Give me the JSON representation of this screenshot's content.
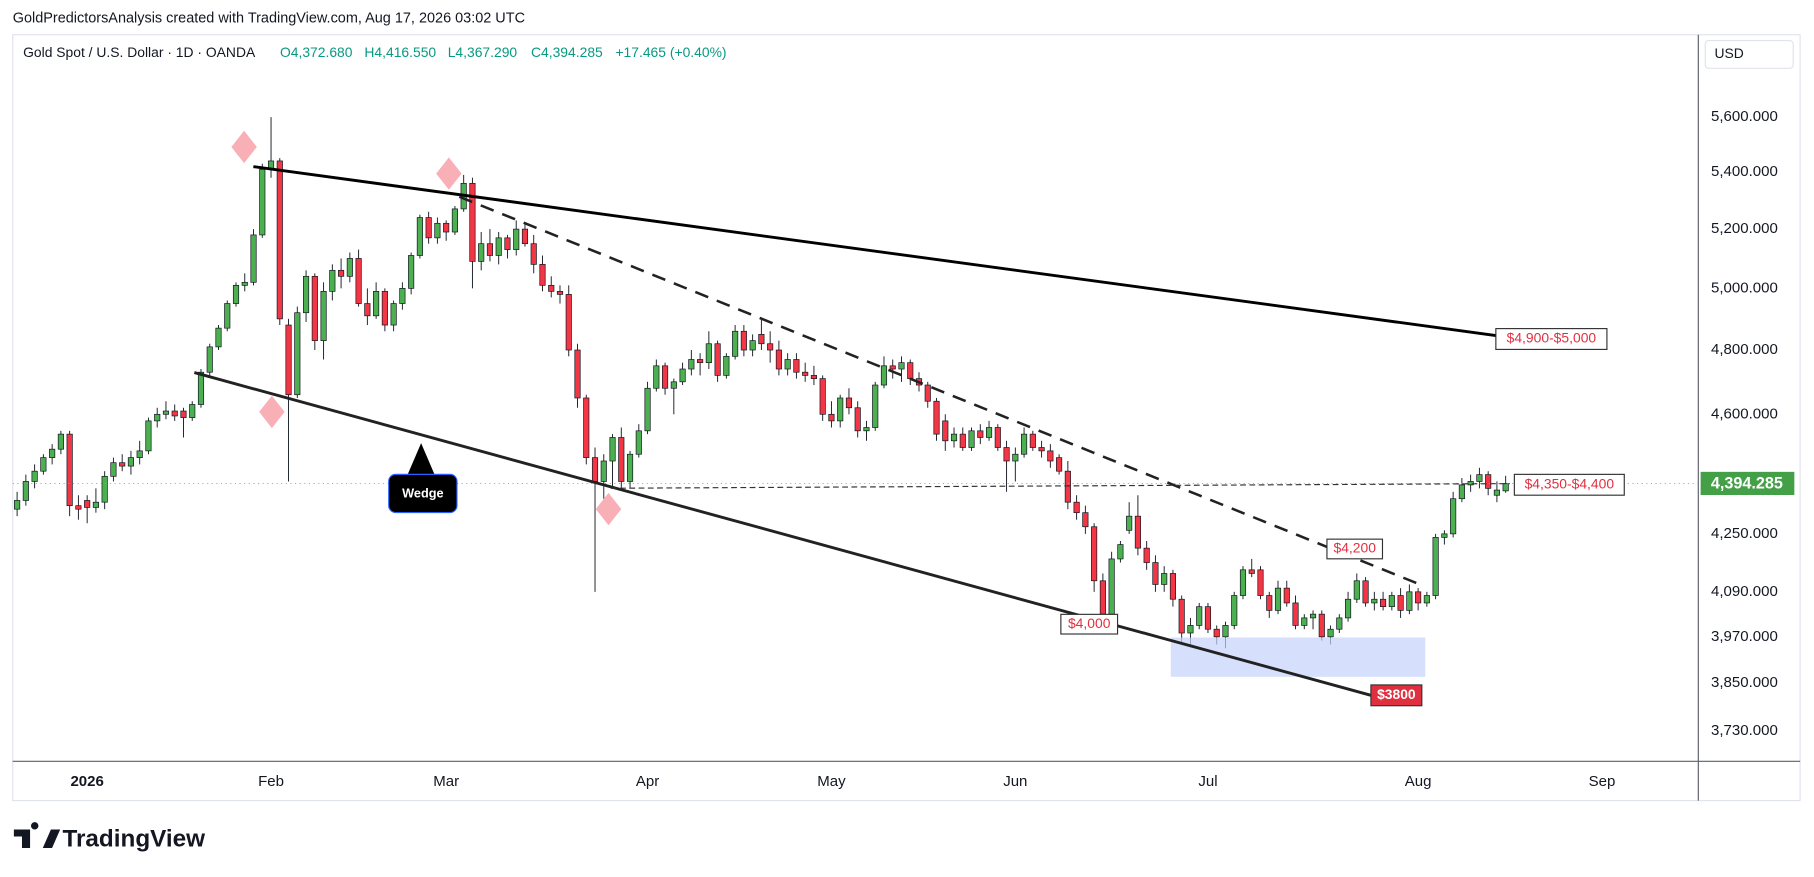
{
  "header": "GoldPredictorsAnalysis created with TradingView.com, Aug 17, 2026 03:02 UTC",
  "legend": {
    "symbol": "Gold Spot / U.S. Dollar · 1D · OANDA",
    "open": "O4,372.680",
    "high": "H4,416.550",
    "low": "L4,367.290",
    "close": "C4,394.285",
    "change": "+17.465 (+0.40%)"
  },
  "currency": "USD",
  "annotations": [
    "Wedge",
    "$4,900-$5,000",
    "$4,350-$4,400",
    "$4,200",
    "$4,000",
    "$3800"
  ],
  "footer_brand": "TradingView",
  "chart_data": {
    "type": "candlestick",
    "log": true,
    "grid": false,
    "up_color": "#4caf50",
    "down_color": "#f23645",
    "last_price_label": "4,394.285",
    "last_price_color": "#43a047",
    "xlim": [
      -0.5,
      192
    ],
    "xticks": [
      {
        "value": 8,
        "label": "2026"
      },
      {
        "value": 29,
        "label": "Feb"
      },
      {
        "value": 49,
        "label": "Mar"
      },
      {
        "value": 72,
        "label": "Apr"
      },
      {
        "value": 93,
        "label": "May"
      },
      {
        "value": 114,
        "label": "Jun"
      },
      {
        "value": 136,
        "label": "Jul"
      },
      {
        "value": 160,
        "label": "Aug"
      },
      {
        "value": 181,
        "label": "Sep"
      }
    ],
    "ylim": [
      3656,
      5914
    ],
    "yticks": [
      {
        "value": 5600,
        "label": "5,600.000"
      },
      {
        "value": 5400,
        "label": "5,400.000"
      },
      {
        "value": 5200,
        "label": "5,200.000"
      },
      {
        "value": 5000,
        "label": "5,000.000"
      },
      {
        "value": 4800,
        "label": "4,800.000"
      },
      {
        "value": 4600,
        "label": "4,600.000"
      },
      {
        "value": 4250,
        "label": "4,250.000"
      },
      {
        "value": 4090,
        "label": "4,090.000"
      },
      {
        "value": 3970,
        "label": "3,970.000"
      },
      {
        "value": 3850,
        "label": "3,850.000"
      },
      {
        "value": 3730,
        "label": "3,730.000"
      }
    ],
    "x": [
      0,
      1,
      2,
      3,
      4,
      5,
      6,
      7,
      8,
      9,
      10,
      11,
      12,
      13,
      14,
      15,
      16,
      17,
      18,
      19,
      20,
      21,
      22,
      23,
      24,
      25,
      26,
      27,
      28,
      29,
      30,
      31,
      32,
      33,
      34,
      35,
      36,
      37,
      38,
      39,
      40,
      41,
      42,
      43,
      44,
      45,
      46,
      47,
      48,
      49,
      50,
      51,
      52,
      53,
      54,
      55,
      56,
      57,
      58,
      59,
      60,
      61,
      62,
      63,
      64,
      65,
      66,
      67,
      68,
      69,
      70,
      71,
      72,
      73,
      74,
      75,
      76,
      77,
      78,
      79,
      80,
      81,
      82,
      83,
      84,
      85,
      86,
      87,
      88,
      89,
      90,
      91,
      92,
      93,
      94,
      95,
      96,
      97,
      98,
      99,
      100,
      101,
      102,
      103,
      104,
      105,
      106,
      107,
      108,
      109,
      110,
      111,
      112,
      113,
      114,
      115,
      116,
      117,
      118,
      119,
      120,
      121,
      122,
      123,
      124,
      125,
      126,
      127,
      128,
      129,
      130,
      131,
      132,
      133,
      134,
      135,
      136,
      137,
      138,
      139,
      140,
      141,
      142,
      143,
      144,
      145,
      146,
      147,
      148,
      149,
      150,
      151,
      152,
      153,
      154,
      155,
      156,
      157,
      158,
      159,
      160,
      161,
      162,
      163,
      164,
      165,
      166,
      167,
      168,
      169,
      170
    ],
    "open": [
      4320,
      4345,
      4400,
      4430,
      4470,
      4495,
      4540,
      4330,
      4345,
      4325,
      4340,
      4415,
      4455,
      4445,
      4470,
      4490,
      4580,
      4600,
      4610,
      4610,
      4590,
      4630,
      4730,
      4810,
      4870,
      4950,
      5010,
      5020,
      5180,
      5410,
      5440,
      4880,
      4660,
      4920,
      5040,
      4830,
      4990,
      5060,
      5040,
      5100,
      4950,
      4910,
      4990,
      4880,
      4950,
      5000,
      5110,
      5240,
      5170,
      5220,
      5190,
      5270,
      5360,
      5090,
      5150,
      5110,
      5170,
      5130,
      5200,
      5150,
      5080,
      5010,
      4990,
      4980,
      4800,
      4650,
      4470,
      4400,
      4460,
      4530,
      4400,
      4480,
      4550,
      4680,
      4750,
      4680,
      4700,
      4740,
      4770,
      4760,
      4820,
      4720,
      4780,
      4860,
      4800,
      4850,
      4820,
      4800,
      4740,
      4770,
      4730,
      4720,
      4710,
      4600,
      4580,
      4650,
      4620,
      4550,
      4560,
      4690,
      4750,
      4740,
      4760,
      4710,
      4690,
      4640,
      4580,
      4520,
      4540,
      4500,
      4550,
      4530,
      4560,
      4500,
      4460,
      4480,
      4540,
      4500,
      4490,
      4470,
      4430,
      4340,
      4310,
      4270,
      4120,
      4030,
      4180,
      4260,
      4300,
      4210,
      4170,
      4110,
      4140,
      4070,
      3980,
      4000,
      4050,
      3990,
      3970,
      4000,
      4080,
      4150,
      4150,
      4080,
      4040,
      4100,
      4060,
      4000,
      4020,
      4030,
      3970,
      3990,
      4020,
      4070,
      4120,
      4060,
      4070,
      4050,
      4080,
      4040,
      4090,
      4060,
      4080,
      4240,
      4250,
      4350,
      4390,
      4400,
      4420,
      4360,
      4372.68
    ],
    "high": [
      4370,
      4420,
      4450,
      4480,
      4510,
      4550,
      4550,
      4360,
      4360,
      4380,
      4430,
      4470,
      4480,
      4490,
      4520,
      4590,
      4620,
      4640,
      4630,
      4620,
      4640,
      4740,
      4820,
      4880,
      4960,
      5020,
      5050,
      5200,
      5430,
      5600,
      5450,
      4900,
      4940,
      5060,
      5050,
      5020,
      5080,
      5100,
      5120,
      5130,
      5000,
      5020,
      5000,
      4960,
      5020,
      5120,
      5250,
      5260,
      5240,
      5230,
      5280,
      5390,
      5380,
      5190,
      5200,
      5190,
      5180,
      5230,
      5220,
      5180,
      5110,
      5040,
      5010,
      5010,
      4820,
      4660,
      4500,
      4480,
      4540,
      4560,
      4490,
      4570,
      4700,
      4770,
      4760,
      4710,
      4760,
      4800,
      4790,
      4860,
      4830,
      4790,
      4880,
      4880,
      4850,
      4900,
      4860,
      4830,
      4790,
      4790,
      4760,
      4750,
      4720,
      4640,
      4660,
      4680,
      4640,
      4580,
      4700,
      4780,
      4770,
      4780,
      4770,
      4730,
      4700,
      4650,
      4600,
      4560,
      4560,
      4560,
      4570,
      4580,
      4570,
      4520,
      4500,
      4560,
      4550,
      4520,
      4510,
      4480,
      4460,
      4360,
      4330,
      4280,
      4140,
      4200,
      4230,
      4340,
      4360,
      4230,
      4190,
      4160,
      4150,
      4080,
      4020,
      4060,
      4060,
      4000,
      4010,
      4090,
      4160,
      4180,
      4160,
      4090,
      4120,
      4120,
      4080,
      4030,
      4040,
      4040,
      4000,
      4030,
      4090,
      4140,
      4130,
      4090,
      4090,
      4090,
      4100,
      4110,
      4100,
      4090,
      4250,
      4260,
      4370,
      4410,
      4420,
      4440,
      4430,
      4400,
      4416.55
    ],
    "low": [
      4300,
      4330,
      4380,
      4420,
      4450,
      4480,
      4300,
      4290,
      4280,
      4310,
      4320,
      4400,
      4430,
      4420,
      4450,
      4480,
      4560,
      4585,
      4580,
      4530,
      4580,
      4620,
      4720,
      4800,
      4860,
      4940,
      4990,
      5010,
      5170,
      5380,
      4880,
      4400,
      4650,
      4890,
      4800,
      4770,
      4960,
      5000,
      5020,
      4940,
      4880,
      4900,
      4860,
      4860,
      4930,
      4980,
      5100,
      5150,
      5150,
      5160,
      5180,
      5260,
      5000,
      5060,
      5090,
      5080,
      5100,
      5110,
      5140,
      5050,
      4990,
      4970,
      4950,
      4780,
      4620,
      4450,
      4090,
      4350,
      4380,
      4380,
      4380,
      4470,
      4540,
      4670,
      4660,
      4600,
      4690,
      4720,
      4720,
      4740,
      4700,
      4710,
      4770,
      4780,
      4780,
      4800,
      4760,
      4720,
      4720,
      4710,
      4700,
      4690,
      4580,
      4560,
      4560,
      4600,
      4530,
      4520,
      4550,
      4680,
      4710,
      4700,
      4690,
      4670,
      4620,
      4520,
      4490,
      4500,
      4490,
      4490,
      4510,
      4520,
      4490,
      4370,
      4400,
      4470,
      4490,
      4470,
      4440,
      4420,
      4320,
      4290,
      4250,
      4090,
      4000,
      4020,
      4170,
      4250,
      4190,
      4150,
      4090,
      4090,
      4050,
      3950,
      3950,
      3990,
      3980,
      3950,
      3940,
      3990,
      4070,
      4130,
      4070,
      4020,
      4030,
      4050,
      3990,
      3990,
      3990,
      3960,
      3950,
      3980,
      4010,
      4060,
      4050,
      4040,
      4040,
      4040,
      4020,
      4030,
      4040,
      4050,
      4070,
      4220,
      4240,
      4340,
      4370,
      4380,
      4360,
      4340,
      4367.29
    ],
    "close": [
      4345,
      4400,
      4430,
      4470,
      4495,
      4540,
      4330,
      4320,
      4325,
      4340,
      4415,
      4455,
      4445,
      4470,
      4490,
      4580,
      4600,
      4610,
      4595,
      4590,
      4630,
      4730,
      4810,
      4870,
      4950,
      5010,
      5020,
      5180,
      5410,
      5440,
      4900,
      4660,
      4920,
      5040,
      4830,
      4990,
      5060,
      5040,
      5100,
      4950,
      4910,
      4990,
      4880,
      4950,
      5000,
      5110,
      5240,
      5170,
      5220,
      5190,
      5270,
      5360,
      5090,
      5150,
      5110,
      5170,
      5130,
      5200,
      5150,
      5080,
      5010,
      4990,
      4980,
      4800,
      4650,
      4470,
      4400,
      4460,
      4530,
      4400,
      4480,
      4550,
      4680,
      4750,
      4680,
      4700,
      4740,
      4770,
      4760,
      4820,
      4720,
      4780,
      4860,
      4800,
      4830,
      4820,
      4800,
      4740,
      4770,
      4730,
      4720,
      4710,
      4600,
      4580,
      4650,
      4620,
      4550,
      4560,
      4690,
      4750,
      4740,
      4760,
      4710,
      4690,
      4640,
      4540,
      4520,
      4540,
      4500,
      4550,
      4530,
      4560,
      4500,
      4460,
      4480,
      4540,
      4500,
      4490,
      4460,
      4430,
      4340,
      4310,
      4270,
      4120,
      4030,
      4180,
      4220,
      4300,
      4210,
      4170,
      4110,
      4140,
      4070,
      3980,
      4000,
      4050,
      3990,
      3970,
      4000,
      4080,
      4150,
      4140,
      4080,
      4040,
      4100,
      4060,
      4000,
      4020,
      4030,
      3970,
      3990,
      4020,
      4070,
      4120,
      4060,
      4070,
      4050,
      4080,
      4040,
      4090,
      4060,
      4080,
      4240,
      4250,
      4350,
      4390,
      4400,
      4420,
      4380,
      4375,
      4394.285
    ]
  }
}
